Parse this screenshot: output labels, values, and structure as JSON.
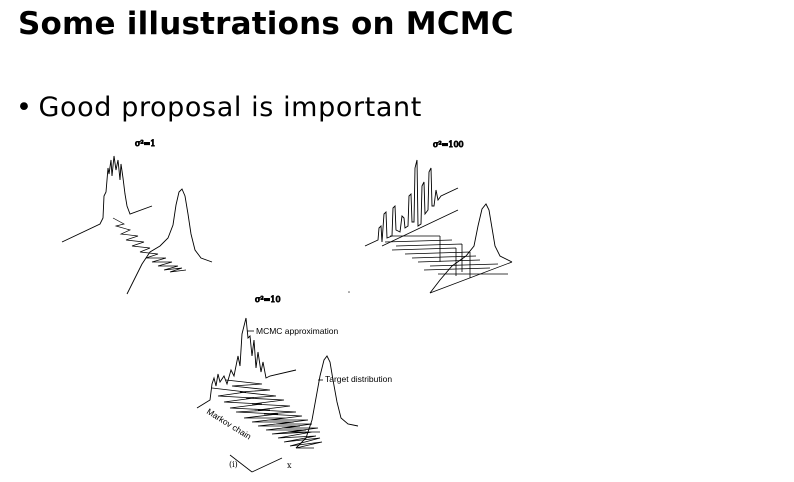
{
  "slide": {
    "title": "Some illustrations on MCMC",
    "bullet": "Good proposal is important"
  },
  "figures": {
    "top_left": {
      "label": "σ²=1"
    },
    "top_right": {
      "label": "σ²=100"
    },
    "bottom": {
      "label": "σ²=10",
      "annotation_mcmc": "MCMC approximation",
      "annotation_target": "Target distribution",
      "annotation_chain": "Markov chain",
      "axis_iter": "(i)",
      "axis_x": "x"
    }
  }
}
